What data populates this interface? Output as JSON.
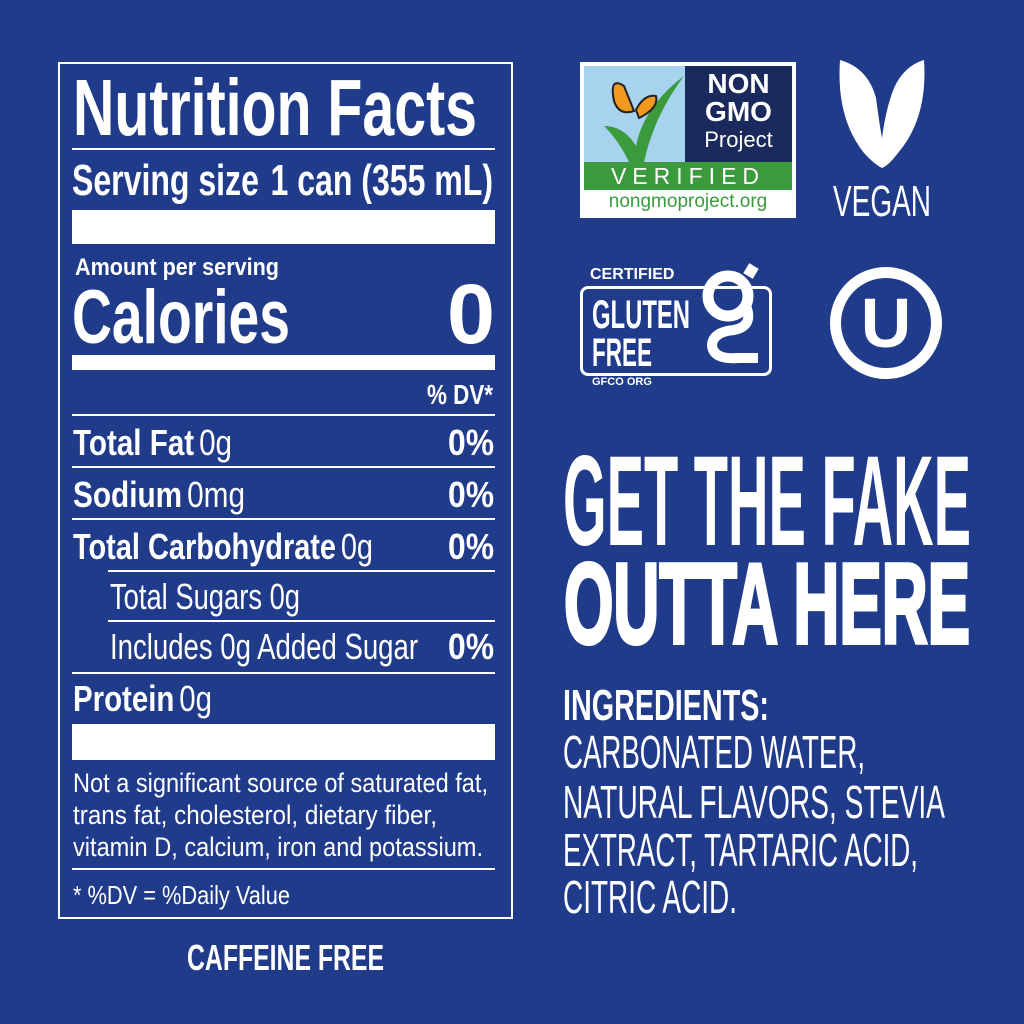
{
  "nutrition": {
    "title": "Nutrition Facts",
    "serving_label": "Serving size",
    "serving_value": "1 can (355 mL)",
    "amount_per_serving": "Amount per serving",
    "calories_label": "Calories",
    "calories_value": "0",
    "dv_header": "% DV*",
    "rows": [
      {
        "name": "Total Fat",
        "amount": "0g",
        "dv": "0%"
      },
      {
        "name": "Sodium",
        "amount": "0mg",
        "dv": "0%"
      },
      {
        "name": "Total Carbohydrate",
        "amount": "0g",
        "dv": "0%"
      },
      {
        "name": "",
        "amount": "Total Sugars 0g",
        "dv": ""
      },
      {
        "name": "",
        "amount": "Includes 0g Added Sugar",
        "dv": "0%"
      },
      {
        "name": "Protein",
        "amount": "0g",
        "dv": ""
      }
    ],
    "footnote": [
      "Not a significant source of saturated fat,",
      "trans fat, cholesterol, dietary fiber,",
      "vitamin D, calcium, iron and potassium."
    ],
    "dv_note": "* %DV = %Daily Value"
  },
  "caffeine": "CAFFEINE FREE",
  "badges": {
    "nongmo": {
      "line1": "NON",
      "line2": "GMO",
      "line3": "Project",
      "verified": "VERIFIED",
      "url": "nongmoproject.org"
    },
    "vegan": "VEGAN",
    "gluten": {
      "certified": "CERTIFIED",
      "line1": "GLUTEN",
      "line2": "FREE",
      "org": "GFCO ORG"
    },
    "kosher": "U"
  },
  "slogan": {
    "line1": "GET THE FAKE",
    "line2": "OUTTA HERE"
  },
  "ingredients": {
    "heading": "INGREDIENTS:",
    "lines": [
      "CARBONATED WATER,",
      "NATURAL FLAVORS, STEVIA",
      "EXTRACT, TARTARIC ACID,",
      "CITRIC ACID."
    ]
  },
  "colors": {
    "background": "#213b8b",
    "nongmo_green": "#3a9a3c",
    "nongmo_navy": "#1a2a5c",
    "nongmo_sky": "#a7d3ef",
    "butterfly": "#f39a1e"
  }
}
